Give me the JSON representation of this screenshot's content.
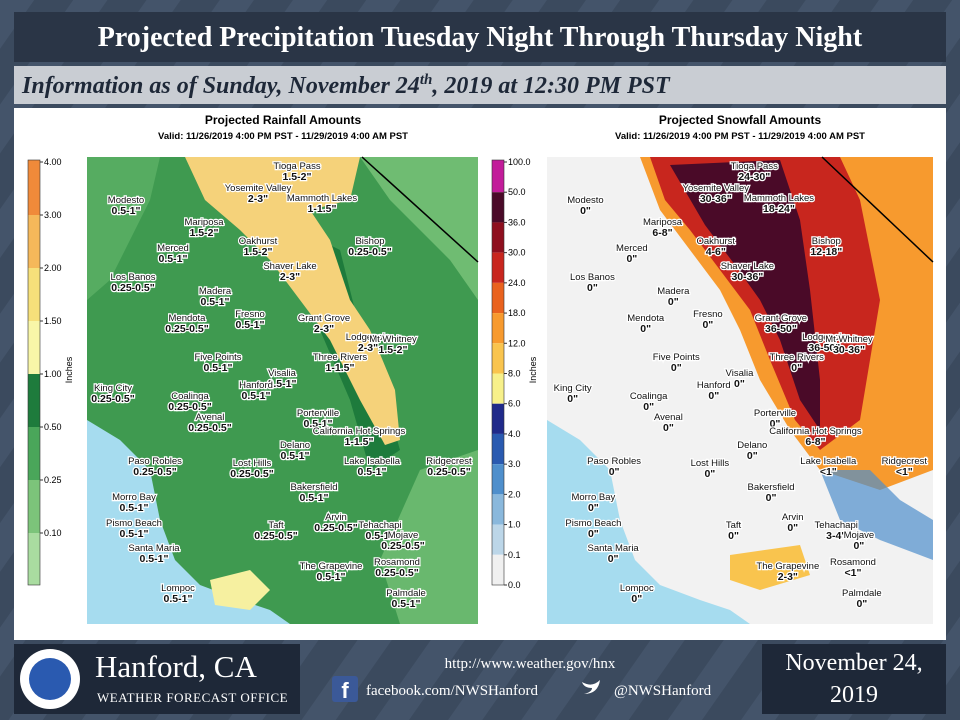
{
  "header": {
    "title": "Projected Precipitation Tuesday Night Through Thursday Night",
    "subtitle": {
      "before": "Information as of Sunday, November 24",
      "sup": "th",
      "after": ", 2019 at 12:30 PM PST"
    }
  },
  "panels": [
    {
      "title": "Projected Rainfall Amounts",
      "valid": "Valid: 11/26/2019 4:00 PM PST - 11/29/2019 4:00 AM PST",
      "legend_title": "Inches",
      "legend_labels": [
        "4.00",
        "3.00",
        "2.00",
        "1.50",
        "1.00",
        "0.50",
        "0.25",
        "0.10"
      ],
      "places": [
        {
          "name": "Tioga Pass",
          "amount": "1.5-2\""
        },
        {
          "name": "Yosemite Valley",
          "amount": "2-3\""
        },
        {
          "name": "Mammoth Lakes",
          "amount": "1-1.5\""
        },
        {
          "name": "Modesto",
          "amount": "0.5-1\""
        },
        {
          "name": "Mariposa",
          "amount": "1.5-2\""
        },
        {
          "name": "Oakhurst",
          "amount": "1.5-2\""
        },
        {
          "name": "Bishop",
          "amount": "0.25-0.5\""
        },
        {
          "name": "Merced",
          "amount": "0.5-1\""
        },
        {
          "name": "Shaver Lake",
          "amount": "2-3\""
        },
        {
          "name": "Los Banos",
          "amount": "0.25-0.5\""
        },
        {
          "name": "Madera",
          "amount": "0.5-1\""
        },
        {
          "name": "Fresno",
          "amount": "0.5-1\""
        },
        {
          "name": "Mendota",
          "amount": "0.25-0.5\""
        },
        {
          "name": "Grant Grove",
          "amount": "2-3\""
        },
        {
          "name": "Lodgepole",
          "amount": "2-3\""
        },
        {
          "name": "Mt Whitney",
          "amount": "1.5-2\""
        },
        {
          "name": "Five Points",
          "amount": "0.5-1\""
        },
        {
          "name": "Three Rivers",
          "amount": "1-1.5\""
        },
        {
          "name": "Visalia",
          "amount": "0.5-1\""
        },
        {
          "name": "Hanford",
          "amount": "0.5-1\""
        },
        {
          "name": "King City",
          "amount": "0.25-0.5\""
        },
        {
          "name": "Coalinga",
          "amount": "0.25-0.5\""
        },
        {
          "name": "Avenal",
          "amount": "0.25-0.5\""
        },
        {
          "name": "Porterville",
          "amount": "0.5-1\""
        },
        {
          "name": "California Hot Springs",
          "amount": "1-1.5\""
        },
        {
          "name": "Delano",
          "amount": "0.5-1\""
        },
        {
          "name": "Paso Robles",
          "amount": "0.25-0.5\""
        },
        {
          "name": "Lost Hills",
          "amount": "0.25-0.5\""
        },
        {
          "name": "Lake Isabella",
          "amount": "0.5-1\""
        },
        {
          "name": "Ridgecrest",
          "amount": "0.25-0.5\""
        },
        {
          "name": "Bakersfield",
          "amount": "0.5-1\""
        },
        {
          "name": "Morro Bay",
          "amount": "0.5-1\""
        },
        {
          "name": "Pismo Beach",
          "amount": "0.5-1\""
        },
        {
          "name": "Taft",
          "amount": "0.25-0.5\""
        },
        {
          "name": "Arvin",
          "amount": "0.25-0.5\""
        },
        {
          "name": "Tehachapi",
          "amount": "0.5-1\""
        },
        {
          "name": "Mojave",
          "amount": "0.25-0.5\""
        },
        {
          "name": "Santa Maria",
          "amount": "0.5-1\""
        },
        {
          "name": "The Grapevine",
          "amount": "0.5-1\""
        },
        {
          "name": "Rosamond",
          "amount": "0.25-0.5\""
        },
        {
          "name": "Lompoc",
          "amount": "0.5-1\""
        },
        {
          "name": "Palmdale",
          "amount": "0.5-1\""
        }
      ]
    },
    {
      "title": "Projected Snowfall Amounts",
      "valid": "Valid: 11/26/2019 4:00 PM PST - 11/29/2019 4:00 AM PST",
      "legend_title": "Inches",
      "legend_labels": [
        "100.0",
        "50.0",
        "36.0",
        "30.0",
        "24.0",
        "18.0",
        "12.0",
        "8.0",
        "6.0",
        "4.0",
        "3.0",
        "2.0",
        "1.0",
        "0.1",
        "0.0"
      ],
      "places": [
        {
          "name": "Tioga Pass",
          "amount": "24-30\""
        },
        {
          "name": "Yosemite Valley",
          "amount": "30-36\""
        },
        {
          "name": "Mammoth Lakes",
          "amount": "18-24\""
        },
        {
          "name": "Modesto",
          "amount": "0\""
        },
        {
          "name": "Mariposa",
          "amount": "6-8\""
        },
        {
          "name": "Oakhurst",
          "amount": "4-6\""
        },
        {
          "name": "Bishop",
          "amount": "12-18\""
        },
        {
          "name": "Merced",
          "amount": "0\""
        },
        {
          "name": "Shaver Lake",
          "amount": "30-36\""
        },
        {
          "name": "Los Banos",
          "amount": "0\""
        },
        {
          "name": "Madera",
          "amount": "0\""
        },
        {
          "name": "Fresno",
          "amount": "0\""
        },
        {
          "name": "Mendota",
          "amount": "0\""
        },
        {
          "name": "Grant Grove",
          "amount": "36-50\""
        },
        {
          "name": "Lodgepole",
          "amount": "36-50\""
        },
        {
          "name": "Mt Whitney",
          "amount": "30-36\""
        },
        {
          "name": "Five Points",
          "amount": "0\""
        },
        {
          "name": "Three Rivers",
          "amount": "0\""
        },
        {
          "name": "Visalia",
          "amount": "0\""
        },
        {
          "name": "Hanford",
          "amount": "0\""
        },
        {
          "name": "King City",
          "amount": "0\""
        },
        {
          "name": "Coalinga",
          "amount": "0\""
        },
        {
          "name": "Avenal",
          "amount": "0\""
        },
        {
          "name": "Porterville",
          "amount": "0\""
        },
        {
          "name": "California Hot Springs",
          "amount": "6-8\""
        },
        {
          "name": "Delano",
          "amount": "0\""
        },
        {
          "name": "Paso Robles",
          "amount": "0\""
        },
        {
          "name": "Lost Hills",
          "amount": "0\""
        },
        {
          "name": "Lake Isabella",
          "amount": "<1\""
        },
        {
          "name": "Ridgecrest",
          "amount": "<1\""
        },
        {
          "name": "Bakersfield",
          "amount": "0\""
        },
        {
          "name": "Morro Bay",
          "amount": "0\""
        },
        {
          "name": "Pismo Beach",
          "amount": "0\""
        },
        {
          "name": "Taft",
          "amount": "0\""
        },
        {
          "name": "Arvin",
          "amount": "0\""
        },
        {
          "name": "Tehachapi",
          "amount": "3-4\""
        },
        {
          "name": "Mojave",
          "amount": "0\""
        },
        {
          "name": "Santa Maria",
          "amount": "0\""
        },
        {
          "name": "The Grapevine",
          "amount": "2-3\""
        },
        {
          "name": "Rosamond",
          "amount": "<1\""
        },
        {
          "name": "Lompoc",
          "amount": "0\""
        },
        {
          "name": "Palmdale",
          "amount": "0\""
        }
      ]
    }
  ],
  "footer": {
    "office": "Hanford, CA",
    "office_type": "WEATHER FORECAST OFFICE",
    "url": "http://www.weather.gov/hnx",
    "facebook": "facebook.com/NWSHanford",
    "twitter": "@NWSHanford",
    "date_line1": "November 24,",
    "date_line2": "2019"
  }
}
